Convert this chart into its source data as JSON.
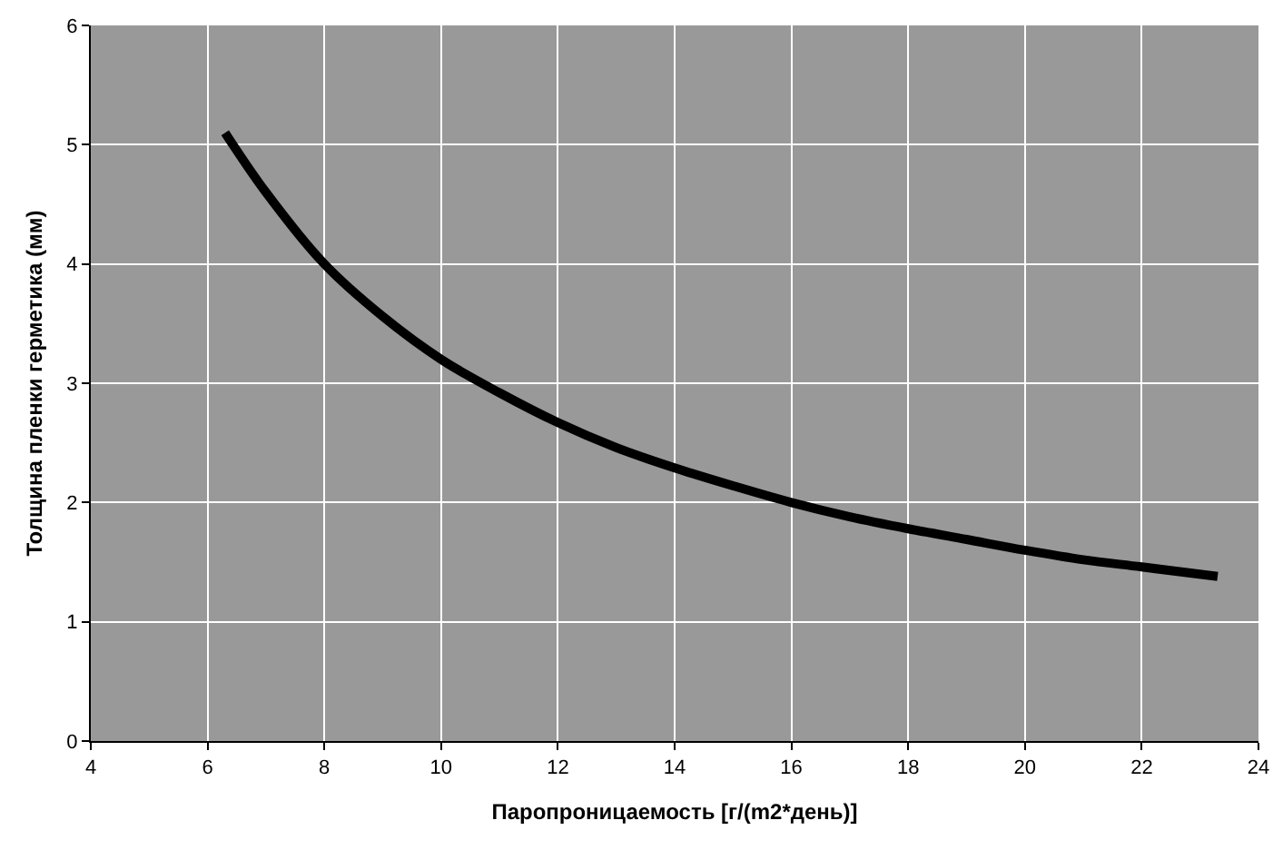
{
  "chart_data": {
    "type": "line",
    "xlabel": "Паропроницаемость [г/(m2*день)]",
    "ylabel": "Толщина пленки герметика (мм)",
    "x": [
      6.3,
      7,
      8,
      9,
      10,
      11,
      12,
      13,
      14,
      15,
      16,
      17,
      18,
      19,
      20,
      21,
      22,
      23.3
    ],
    "series": [
      {
        "color": "#000000",
        "values": [
          5.1,
          4.6,
          4.0,
          3.56,
          3.2,
          2.92,
          2.67,
          2.46,
          2.29,
          2.14,
          2.0,
          1.88,
          1.78,
          1.69,
          1.6,
          1.52,
          1.46,
          1.38
        ]
      }
    ],
    "xlim": [
      4,
      24
    ],
    "xticks": [
      4,
      6,
      8,
      10,
      12,
      14,
      16,
      18,
      20,
      22,
      24
    ],
    "ylim": [
      0,
      6
    ],
    "yticks": [
      0,
      1,
      2,
      3,
      4,
      5,
      6
    ],
    "grid": true,
    "marker": "none",
    "line_style": "solid"
  }
}
